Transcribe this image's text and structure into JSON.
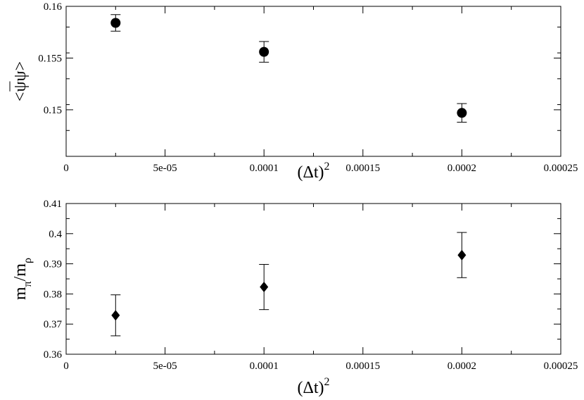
{
  "chart_data": [
    {
      "type": "scatter",
      "title": "",
      "xlabel": "(Δt)",
      "xlabel_sup": "2",
      "ylabel": "<ψψ>",
      "xlim": [
        0,
        0.00025
      ],
      "ylim": [
        0.1455,
        0.16
      ],
      "x_ticks": [
        0,
        5e-05,
        0.0001,
        0.00015,
        0.0002,
        0.00025
      ],
      "x_tick_labels": [
        "0",
        "5e-05",
        "0.0001",
        "0.00015",
        "0.0002",
        "0.00025"
      ],
      "y_ticks": [
        0.15,
        0.155,
        0.16
      ],
      "y_tick_labels": [
        "0.15",
        "0.155",
        "0.16"
      ],
      "grid": false,
      "marker": "circle",
      "series": [
        {
          "x": [
            2.5e-05,
            0.0001,
            0.0002
          ],
          "y": [
            0.1584,
            0.1556,
            0.1497
          ],
          "err": [
            0.0008,
            0.001,
            0.0009
          ]
        }
      ]
    },
    {
      "type": "scatter",
      "title": "",
      "xlabel": "(Δt)",
      "xlabel_sup": "2",
      "ylabel": "m",
      "ylabel_sub1": "π",
      "ylabel_mid": "/m",
      "ylabel_sub2": "ρ",
      "xlim": [
        0,
        0.00025
      ],
      "ylim": [
        0.36,
        0.41
      ],
      "x_ticks": [
        0,
        5e-05,
        0.0001,
        0.00015,
        0.0002,
        0.00025
      ],
      "x_tick_labels": [
        "0",
        "5e-05",
        "0.0001",
        "0.00015",
        "0.0002",
        "0.00025"
      ],
      "y_ticks": [
        0.36,
        0.37,
        0.38,
        0.39,
        0.4,
        0.41
      ],
      "y_tick_labels": [
        "0.36",
        "0.37",
        "0.38",
        "0.39",
        "0.4",
        "0.41"
      ],
      "grid": false,
      "marker": "diamond",
      "series": [
        {
          "x": [
            2.5e-05,
            0.0001,
            0.0002
          ],
          "y": [
            0.3729,
            0.3823,
            0.3929
          ],
          "err": [
            0.0068,
            0.0075,
            0.0075
          ]
        }
      ]
    }
  ]
}
